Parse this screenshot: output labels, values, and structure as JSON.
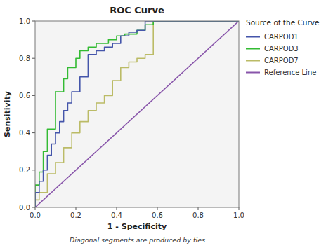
{
  "chart_data": {
    "type": "line",
    "title": "ROC Curve",
    "x_label": "1 - Specificity",
    "y_label": "Sensitivity",
    "footnote": "Diagonal segments are produced by ties.",
    "legend_title": "Source of the Curve",
    "legend": "right",
    "grid": false,
    "xlim": [
      0.0,
      1.0
    ],
    "ylim": [
      0.0,
      1.0
    ],
    "xticks": [
      {
        "value": 0.0,
        "label": "0.0"
      },
      0.2,
      0.4,
      0.6,
      0.8,
      {
        "value": 1.0,
        "label": "1.0"
      }
    ],
    "yticks": [
      {
        "value": 0.0,
        "label": "0.0"
      },
      0.2,
      0.4,
      0.6,
      0.8,
      {
        "value": 1.0,
        "label": "1.0"
      }
    ],
    "series": [
      {
        "name": "CARPOD1",
        "color": "#4455aa",
        "x": [
          0.0,
          0.0,
          0.02,
          0.02,
          0.04,
          0.04,
          0.06,
          0.06,
          0.08,
          0.08,
          0.1,
          0.1,
          0.12,
          0.12,
          0.14,
          0.14,
          0.16,
          0.16,
          0.18,
          0.18,
          0.22,
          0.22,
          0.26,
          0.26,
          0.3,
          0.3,
          0.34,
          0.34,
          0.38,
          0.38,
          0.42,
          0.42,
          0.46,
          0.46,
          0.5,
          0.5,
          0.54,
          0.54,
          0.96,
          0.96,
          1.0
        ],
        "values": [
          0.0,
          0.08,
          0.08,
          0.14,
          0.14,
          0.2,
          0.2,
          0.28,
          0.28,
          0.34,
          0.34,
          0.4,
          0.4,
          0.46,
          0.46,
          0.52,
          0.52,
          0.56,
          0.56,
          0.62,
          0.62,
          0.7,
          0.7,
          0.82,
          0.82,
          0.84,
          0.84,
          0.86,
          0.86,
          0.88,
          0.88,
          0.92,
          0.92,
          0.94,
          0.94,
          0.95,
          0.95,
          1.0,
          1.0,
          1.0,
          1.0
        ]
      },
      {
        "name": "CARPOD3",
        "color": "#33bb33",
        "x": [
          0.0,
          0.0,
          0.02,
          0.02,
          0.04,
          0.04,
          0.06,
          0.06,
          0.1,
          0.1,
          0.14,
          0.14,
          0.16,
          0.16,
          0.2,
          0.2,
          0.22,
          0.22,
          0.26,
          0.26,
          0.3,
          0.3,
          0.36,
          0.36,
          0.4,
          0.4,
          0.44,
          0.44,
          0.5,
          0.5,
          0.54,
          0.54,
          0.58,
          0.58,
          1.0
        ],
        "values": [
          0.0,
          0.12,
          0.12,
          0.19,
          0.19,
          0.3,
          0.3,
          0.42,
          0.42,
          0.62,
          0.62,
          0.69,
          0.69,
          0.75,
          0.75,
          0.8,
          0.8,
          0.84,
          0.84,
          0.86,
          0.86,
          0.88,
          0.88,
          0.9,
          0.9,
          0.92,
          0.92,
          0.93,
          0.93,
          0.95,
          0.95,
          0.98,
          0.98,
          1.0,
          1.0
        ]
      },
      {
        "name": "CARPOD7",
        "color": "#bbbb66",
        "x": [
          0.0,
          0.0,
          0.02,
          0.02,
          0.06,
          0.06,
          0.1,
          0.1,
          0.14,
          0.14,
          0.18,
          0.18,
          0.22,
          0.22,
          0.26,
          0.26,
          0.3,
          0.3,
          0.34,
          0.34,
          0.38,
          0.38,
          0.42,
          0.42,
          0.46,
          0.46,
          0.5,
          0.5,
          0.54,
          0.54,
          0.58,
          0.58,
          1.0
        ],
        "values": [
          0.0,
          0.04,
          0.04,
          0.08,
          0.08,
          0.18,
          0.18,
          0.24,
          0.24,
          0.32,
          0.32,
          0.4,
          0.4,
          0.46,
          0.46,
          0.52,
          0.52,
          0.56,
          0.56,
          0.6,
          0.6,
          0.68,
          0.68,
          0.75,
          0.75,
          0.78,
          0.78,
          0.8,
          0.8,
          0.82,
          0.82,
          1.0,
          1.0
        ]
      },
      {
        "name": "Reference Line",
        "color": "#8855aa",
        "x": [
          0,
          1
        ],
        "values": [
          0,
          1
        ]
      }
    ]
  }
}
